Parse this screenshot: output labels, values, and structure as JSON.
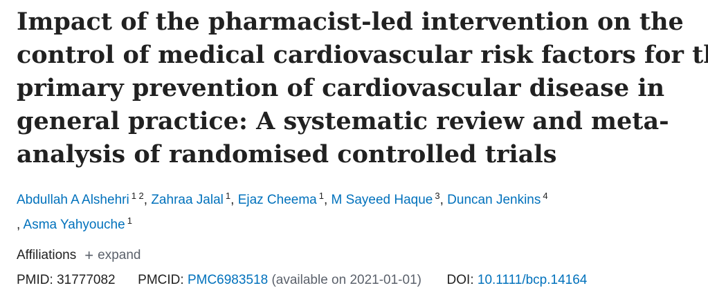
{
  "title_lines": [
    "Impact of the pharmacist-led intervention on the",
    "control of medical cardiovascular risk factors for the",
    "primary prevention of cardiovascular disease in",
    "general practice: A systematic review and meta-",
    "analysis of randomised controlled trials"
  ],
  "authors": [
    {
      "name": "Abdullah A Alshehri",
      "affs": "1 2"
    },
    {
      "name": "Zahraa Jalal",
      "affs": "1"
    },
    {
      "name": "Ejaz Cheema",
      "affs": "1"
    },
    {
      "name": "M Sayeed Haque",
      "affs": "3"
    },
    {
      "name": "Duncan Jenkins",
      "affs": "4"
    },
    {
      "name": "Asma Yahyouche",
      "affs": "1"
    }
  ],
  "affiliations": {
    "label": "Affiliations",
    "expand_label": "expand"
  },
  "ids": {
    "pmid_label": "PMID:",
    "pmid": "31777082",
    "pmcid_label": "PMCID:",
    "pmcid": "PMC6983518",
    "pmcid_note": "(available on 2021-01-01)",
    "doi_label": "DOI:",
    "doi": "10.1111/bcp.14164"
  },
  "colors": {
    "link": "#0071bc",
    "text": "#212121",
    "muted": "#5b616b"
  }
}
